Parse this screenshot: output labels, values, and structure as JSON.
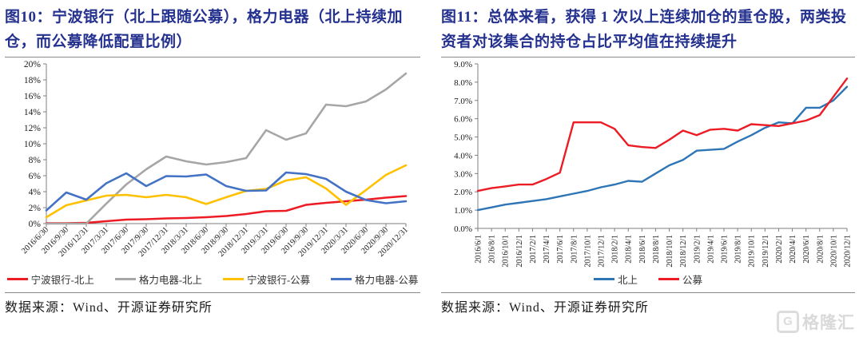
{
  "figures": [
    {
      "title": "图10：宁波银行（北上跟随公募），格力电器（北上持续加仓，而公募降低配置比例）",
      "source": "数据来源：Wind、开源证券研究所"
    },
    {
      "title": "图11：总体来看，获得 1 次以上连续加仓的重仓股，两类投资者对该集合的持仓占比平均值在持续提升",
      "source": "数据来源：Wind、开源证券研究所"
    }
  ],
  "watermark": {
    "logo_letter": "G",
    "text": "格隆汇"
  },
  "chart_data": [
    {
      "type": "line",
      "title": "图10 宁波银行/格力电器 持仓比例",
      "categories": [
        "2016/6/30",
        "2016/9/30",
        "2016/12/31",
        "2017/3/31",
        "2017/6/30",
        "2017/9/30",
        "2017/12/31",
        "2018/3/31",
        "2018/6/30",
        "2018/9/30",
        "2018/12/31",
        "2019/3/31",
        "2019/6/30",
        "2019/9/30",
        "2019/12/31",
        "2020/3/31",
        "2020/6/30",
        "2020/9/30",
        "2020/12/31"
      ],
      "series": [
        {
          "name": "宁波银行-北上",
          "color": "#ed1c24",
          "values": [
            0.05,
            0.05,
            0.1,
            0.3,
            0.5,
            0.55,
            0.65,
            0.7,
            0.8,
            0.95,
            1.2,
            1.55,
            1.6,
            2.35,
            2.6,
            2.8,
            3.0,
            3.25,
            3.45
          ]
        },
        {
          "name": "格力电器-北上",
          "color": "#a6a6a6",
          "values": [
            0.0,
            0.0,
            0.0,
            2.5,
            4.9,
            6.8,
            8.4,
            7.8,
            7.4,
            7.7,
            8.2,
            11.7,
            10.5,
            11.3,
            14.9,
            14.7,
            15.3,
            16.8,
            18.8
          ]
        },
        {
          "name": "宁波银行-公募",
          "color": "#ffc000",
          "values": [
            0.8,
            2.3,
            2.9,
            3.5,
            3.6,
            3.3,
            3.6,
            3.3,
            2.45,
            3.3,
            4.1,
            4.35,
            5.4,
            5.8,
            4.4,
            2.35,
            4.2,
            6.1,
            7.3
          ]
        },
        {
          "name": "格力电器-公募",
          "color": "#4472c4",
          "values": [
            1.65,
            3.9,
            3.0,
            5.05,
            6.3,
            4.7,
            5.95,
            5.9,
            6.15,
            4.7,
            4.1,
            4.15,
            6.4,
            6.2,
            5.6,
            4.0,
            2.95,
            2.55,
            2.8
          ]
        }
      ],
      "ylim": [
        0,
        20
      ],
      "ytick_step": 2,
      "ytick_format": "0%",
      "xlabel_rotation": -45,
      "grid": false,
      "legend_position": "bottom"
    },
    {
      "type": "line",
      "title": "图11 连续加仓重仓股集合持仓占比平均值",
      "categories": [
        "2016/6/1",
        "2016/8/1",
        "2016/10/1",
        "2016/12/1",
        "2017/2/1",
        "2017/4/1",
        "2017/6/1",
        "2017/8/1",
        "2017/10/1",
        "2017/12/1",
        "2018/2/1",
        "2018/4/1",
        "2018/6/1",
        "2018/8/1",
        "2018/10/1",
        "2018/12/1",
        "2019/2/1",
        "2019/4/1",
        "2019/6/1",
        "2019/8/1",
        "2019/10/1",
        "2019/12/1",
        "2020/2/1",
        "2020/4/1",
        "2020/6/1",
        "2020/8/1",
        "2020/10/1",
        "2020/12/1"
      ],
      "series": [
        {
          "name": "北上",
          "color": "#2e75b6",
          "values": [
            1.0,
            1.15,
            1.3,
            1.4,
            1.5,
            1.6,
            1.75,
            1.9,
            2.05,
            2.25,
            2.4,
            2.6,
            2.55,
            3.0,
            3.45,
            3.75,
            4.25,
            4.3,
            4.35,
            4.75,
            5.1,
            5.5,
            5.8,
            5.75,
            6.6,
            6.6,
            7.0,
            7.75
          ]
        },
        {
          "name": "公募",
          "color": "#ed1c24",
          "values": [
            2.05,
            2.2,
            2.3,
            2.4,
            2.4,
            2.7,
            3.05,
            5.8,
            5.8,
            5.8,
            5.45,
            4.55,
            4.45,
            4.4,
            4.85,
            5.35,
            5.1,
            5.4,
            5.45,
            5.35,
            5.7,
            5.65,
            5.6,
            5.75,
            5.9,
            6.2,
            7.2,
            8.2
          ]
        }
      ],
      "ylim": [
        0,
        9
      ],
      "ytick_step": 1,
      "ytick_format": "0.0%",
      "xlabel_rotation": -90,
      "grid": false,
      "legend_position": "bottom"
    }
  ]
}
